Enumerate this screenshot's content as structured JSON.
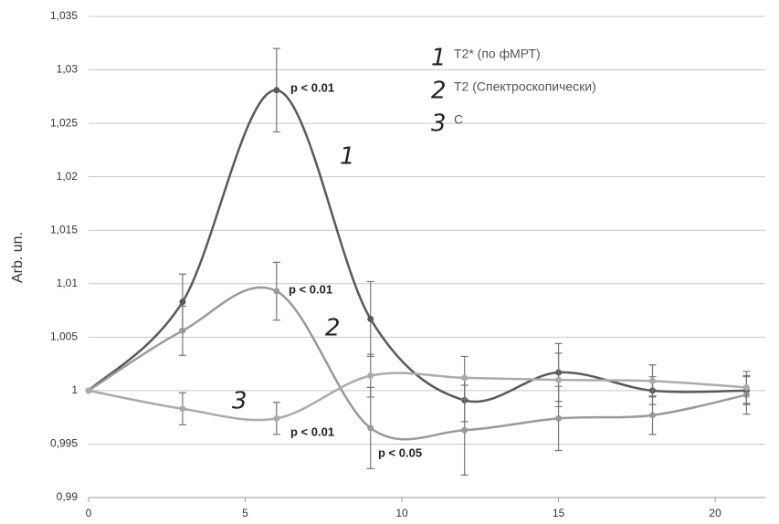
{
  "chart_data": {
    "type": "line",
    "ylabel": "Arb. un.",
    "xlim": [
      0,
      21.6
    ],
    "xticks": [
      0,
      5,
      10,
      15,
      20
    ],
    "ylim": [
      0.99,
      1.035
    ],
    "yticks": [
      {
        "value": 0.99,
        "label": "0,99"
      },
      {
        "value": 0.995,
        "label": "0,995"
      },
      1,
      {
        "value": 1.005,
        "label": "1,005"
      },
      {
        "value": 1.01,
        "label": "1,01"
      },
      {
        "value": 1.015,
        "label": "1,015"
      },
      {
        "value": 1.02,
        "label": "1,02"
      },
      {
        "value": 1.025,
        "label": "1,025"
      },
      {
        "value": 1.03,
        "label": "1,03"
      },
      {
        "value": 1.035,
        "label": "1,035"
      }
    ],
    "grid": true,
    "x": [
      0,
      3,
      6,
      9,
      12,
      15,
      18,
      21
    ],
    "series": [
      {
        "label": "1",
        "name": "T2* (по фМРТ)",
        "color": "#5a5a5a",
        "values": [
          1.0,
          1.0083,
          1.0281,
          1.0067,
          0.9991,
          1.0017,
          1.0,
          1.0
        ],
        "errors": [
          0,
          0.0026,
          0.0039,
          0.0035,
          0.002,
          0.0027,
          0.0013,
          0.0013
        ]
      },
      {
        "label": "2",
        "name": "T2 (Спектроскопически)",
        "color": "#9a9a9a",
        "values": [
          1.0,
          1.0056,
          1.0093,
          0.9965,
          0.9963,
          0.9974,
          0.9977,
          0.9996
        ],
        "errors": [
          0,
          0.0023,
          0.0027,
          0.0038,
          0.0042,
          0.003,
          0.0018,
          0.0018
        ]
      },
      {
        "label": "3",
        "name": "C",
        "color": "#ababab",
        "values": [
          1.0,
          0.9983,
          0.9974,
          1.0014,
          1.0012,
          1.001,
          1.0009,
          1.0003
        ],
        "errors": [
          0,
          0.0015,
          0.0015,
          0.002,
          0.002,
          0.0025,
          0.0015,
          0.0015
        ]
      }
    ],
    "annotations": [
      "p < 0.01",
      "p < 0.01",
      "p < 0.01",
      "p < 0.05"
    ]
  }
}
